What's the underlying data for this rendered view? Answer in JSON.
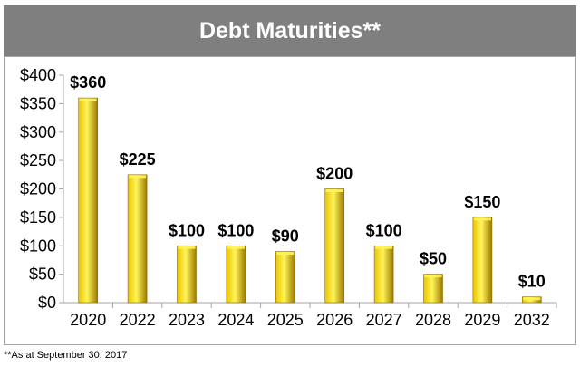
{
  "header": {
    "title": "Debt Maturities**"
  },
  "footnote": "**As at September 30, 2017",
  "colors": {
    "header_bg": "#7f7f7f",
    "bar_light": "#fff45a",
    "bar_mid": "#e8c400",
    "bar_dark": "#9c7a00"
  },
  "chart_data": {
    "type": "bar",
    "title": "Debt Maturities**",
    "categories": [
      "2020",
      "2022",
      "2023",
      "2024",
      "2025",
      "2026",
      "2027",
      "2028",
      "2029",
      "2032"
    ],
    "values": [
      360,
      225,
      100,
      100,
      90,
      200,
      100,
      50,
      150,
      10
    ],
    "value_labels": [
      "$360",
      "$225",
      "$100",
      "$100",
      "$90",
      "$200",
      "$100",
      "$50",
      "$150",
      "$10"
    ],
    "yticks": [
      0,
      50,
      100,
      150,
      200,
      250,
      300,
      350,
      400
    ],
    "ytick_labels": [
      "$0",
      "$50",
      "$100",
      "$150",
      "$200",
      "$250",
      "$300",
      "$350",
      "$400"
    ],
    "ylim": [
      0,
      400
    ],
    "xlabel": "",
    "ylabel": "",
    "grid": false,
    "legend": "none"
  }
}
